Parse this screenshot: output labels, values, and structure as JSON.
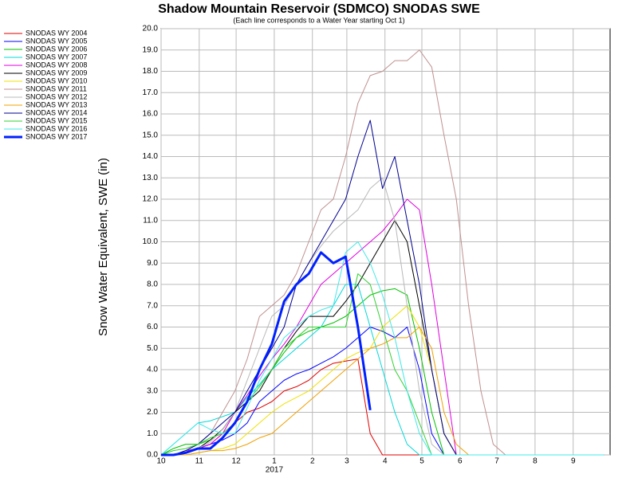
{
  "chart_data": {
    "type": "line",
    "title": "Shadow Mountain Reservoir (SDMCO) SNODAS SWE",
    "subtitle": "(Each line corresponds to a Water Year starting Oct 1)",
    "y_label": "Snow Water Equivalent, SWE (in)",
    "x_year_label": "2017",
    "x": [
      0,
      10,
      20,
      30,
      40,
      50,
      60,
      70,
      80,
      90,
      100,
      110,
      120,
      130,
      140,
      150,
      160,
      170,
      180,
      190,
      200,
      210,
      220,
      230,
      240,
      250,
      260,
      270,
      280,
      290,
      300,
      310,
      320,
      330,
      340,
      350,
      360
    ],
    "xlim": [
      0,
      365
    ],
    "xticks": [
      {
        "value": 0,
        "label": "10"
      },
      {
        "value": 31,
        "label": "11"
      },
      {
        "value": 61,
        "label": "12"
      },
      {
        "value": 92,
        "label": "1"
      },
      {
        "value": 123,
        "label": "2"
      },
      {
        "value": 151,
        "label": "3"
      },
      {
        "value": 182,
        "label": "4"
      },
      {
        "value": 212,
        "label": "5"
      },
      {
        "value": 243,
        "label": "6"
      },
      {
        "value": 273,
        "label": "7"
      },
      {
        "value": 304,
        "label": "8"
      },
      {
        "value": 335,
        "label": "9"
      }
    ],
    "ylim": [
      0,
      20
    ],
    "yticks": [
      {
        "value": 0,
        "label": "0.0"
      },
      {
        "value": 1,
        "label": "1.0"
      },
      {
        "value": 2,
        "label": "2.0"
      },
      {
        "value": 3,
        "label": "3.0"
      },
      {
        "value": 4,
        "label": "4.0"
      },
      {
        "value": 5,
        "label": "5.0"
      },
      {
        "value": 6,
        "label": "6.0"
      },
      {
        "value": 7,
        "label": "7.0"
      },
      {
        "value": 8,
        "label": "8.0"
      },
      {
        "value": 9,
        "label": "9.0"
      },
      {
        "value": 10,
        "label": "10.0"
      },
      {
        "value": 11,
        "label": "11.0"
      },
      {
        "value": 12,
        "label": "12.0"
      },
      {
        "value": 13,
        "label": "13.0"
      },
      {
        "value": 14,
        "label": "14.0"
      },
      {
        "value": 15,
        "label": "15.0"
      },
      {
        "value": 16,
        "label": "16.0"
      },
      {
        "value": 17,
        "label": "17.0"
      },
      {
        "value": 18,
        "label": "18.0"
      },
      {
        "value": 19,
        "label": "19.0"
      },
      {
        "value": 20,
        "label": "20.0"
      }
    ],
    "grid": true,
    "series": [
      {
        "name": "SNODAS WY 2004",
        "color": "#e00000",
        "values": [
          0,
          0,
          0.1,
          0.3,
          0.5,
          1,
          1.5,
          2,
          2.2,
          2.5,
          3,
          3.2,
          3.5,
          4,
          4.3,
          4.4,
          4.5,
          1,
          0,
          0,
          0,
          0,
          0,
          0,
          0,
          0,
          0,
          0,
          0,
          0,
          0,
          0,
          0,
          0,
          0,
          0,
          0
        ]
      },
      {
        "name": "SNODAS WY 2005",
        "color": "#0000ff",
        "values": [
          0,
          0,
          0.1,
          0.3,
          0.5,
          0.7,
          1,
          1.5,
          2.5,
          3,
          3.5,
          3.8,
          4,
          4.3,
          4.6,
          5,
          5.5,
          6,
          5.8,
          5.5,
          6,
          4,
          1,
          0,
          0,
          0,
          0,
          0,
          0,
          0,
          0,
          0,
          0,
          0,
          0,
          0,
          0
        ]
      },
      {
        "name": "SNODAS WY 2006",
        "color": "#00c000",
        "values": [
          0,
          0.3,
          0.5,
          0.5,
          0.7,
          1.2,
          2,
          2.7,
          3.3,
          4,
          4.8,
          5.5,
          5.8,
          6,
          6.2,
          6.5,
          7,
          7.5,
          7.7,
          7.8,
          7.5,
          5,
          2,
          0,
          0,
          0,
          0,
          0,
          0,
          0,
          0,
          0,
          0,
          0,
          0,
          0,
          0
        ]
      },
      {
        "name": "SNODAS WY 2007",
        "color": "#00d8d8",
        "values": [
          0,
          0.5,
          1,
          1.5,
          1.6,
          1.8,
          2,
          2.7,
          3.3,
          4,
          4.5,
          5,
          5.5,
          6,
          7,
          8,
          8,
          6,
          4,
          2,
          0.5,
          0,
          0,
          0,
          0,
          0,
          0,
          0,
          0,
          0,
          0,
          0,
          0,
          0,
          0,
          0,
          0
        ]
      },
      {
        "name": "SNODAS WY 2008",
        "color": "#e000e0",
        "values": [
          0,
          0,
          0.2,
          0.3,
          0.5,
          1,
          2,
          2.8,
          3.7,
          4.5,
          5.2,
          6,
          7,
          8,
          8.5,
          9,
          9.5,
          10,
          10.5,
          11.2,
          12,
          11.5,
          8,
          4,
          0,
          0,
          0,
          0,
          0,
          0,
          0,
          0,
          0,
          0,
          0,
          0,
          0
        ]
      },
      {
        "name": "SNODAS WY 2009",
        "color": "#000000",
        "values": [
          0,
          0,
          0.1,
          0.3,
          0.7,
          1.2,
          2,
          2.5,
          3,
          4,
          5,
          5.8,
          6.5,
          6.5,
          6.5,
          7.2,
          8,
          9,
          10,
          11,
          10,
          7,
          4,
          1,
          0,
          0,
          0,
          0,
          0,
          0,
          0,
          0,
          0,
          0,
          0,
          0,
          0
        ]
      },
      {
        "name": "SNODAS WY 2010",
        "color": "#f0e000",
        "values": [
          0,
          0,
          0,
          0.1,
          0.2,
          0.3,
          0.5,
          1,
          1.5,
          2,
          2.4,
          2.7,
          3,
          3.5,
          4,
          4.5,
          4.8,
          5,
          6,
          6.5,
          7,
          6,
          4,
          1,
          0,
          0,
          0,
          0,
          0,
          0,
          0,
          0,
          0,
          0,
          0,
          0,
          0
        ]
      },
      {
        "name": "SNODAS WY 2011",
        "color": "#c09090",
        "values": [
          0,
          0,
          0.2,
          0.5,
          1,
          2,
          3,
          4.5,
          6.5,
          7,
          7.5,
          8.5,
          10,
          11.5,
          12,
          14,
          16.5,
          17.8,
          18,
          18.5,
          18.5,
          19,
          18.2,
          15,
          12,
          7,
          3,
          0.5,
          0,
          0,
          0,
          0,
          0,
          0,
          0,
          0,
          0
        ]
      },
      {
        "name": "SNODAS WY 2012",
        "color": "#b8b8b8",
        "values": [
          0,
          0,
          0.1,
          0.3,
          0.6,
          1.2,
          2,
          3.5,
          5,
          6.5,
          7,
          8,
          9,
          9.8,
          10.5,
          11,
          11.5,
          12.5,
          13,
          11,
          7,
          3,
          0.5,
          0,
          0,
          0,
          0,
          0,
          0,
          0,
          0,
          0,
          0,
          0,
          0,
          0,
          0
        ]
      },
      {
        "name": "SNODAS WY 2013",
        "color": "#f0a000",
        "values": [
          0,
          0,
          0,
          0.1,
          0.2,
          0.2,
          0.3,
          0.5,
          0.8,
          1,
          1.5,
          2,
          2.5,
          3,
          3.5,
          4,
          4.5,
          5,
          5.2,
          5.5,
          5.5,
          6,
          5,
          2,
          0.5,
          0,
          0,
          0,
          0,
          0,
          0,
          0,
          0,
          0,
          0,
          0,
          0
        ]
      },
      {
        "name": "SNODAS WY 2014",
        "color": "#000090",
        "values": [
          0,
          0,
          0.2,
          0.5,
          1,
          1.5,
          2,
          3,
          4,
          5,
          6,
          8,
          9,
          10,
          11,
          12,
          14,
          15.7,
          12.5,
          14,
          11,
          8,
          4,
          1,
          0,
          0,
          0,
          0,
          0,
          0,
          0,
          0,
          0,
          0,
          0,
          0,
          0
        ]
      },
      {
        "name": "SNODAS WY 2015",
        "color": "#30d030",
        "values": [
          0,
          0.2,
          0.3,
          0.5,
          0.8,
          1,
          1.5,
          2.5,
          3.2,
          4,
          5,
          5.5,
          6,
          6,
          6,
          6,
          8.5,
          8,
          6,
          4,
          3,
          1.5,
          0,
          0,
          0,
          0,
          0,
          0,
          0,
          0,
          0,
          0,
          0,
          0,
          0,
          0,
          0
        ]
      },
      {
        "name": "SNODAS WY 2016",
        "color": "#40e8e8",
        "values": [
          0,
          0.5,
          1,
          1.5,
          1.2,
          1,
          1,
          2.2,
          3.5,
          4.5,
          5.5,
          6,
          6.5,
          6.8,
          7,
          9.5,
          10,
          9,
          7.5,
          5.5,
          3,
          1,
          0,
          0,
          0,
          0,
          0,
          0,
          0,
          0,
          0,
          0,
          0,
          0,
          0,
          0,
          0
        ]
      },
      {
        "name": "SNODAS WY 2017",
        "color": "#0020ff",
        "linewidth": 3,
        "values": [
          0,
          0,
          0.1,
          0.3,
          0.3,
          0.8,
          1.5,
          2.5,
          4,
          5.2,
          7.2,
          8,
          8.5,
          9.5,
          9,
          9.3,
          6,
          2.1,
          null,
          null,
          null,
          null,
          null,
          null,
          null,
          null,
          null,
          null,
          null,
          null,
          null,
          null,
          null,
          null,
          null,
          null,
          null
        ]
      }
    ]
  }
}
